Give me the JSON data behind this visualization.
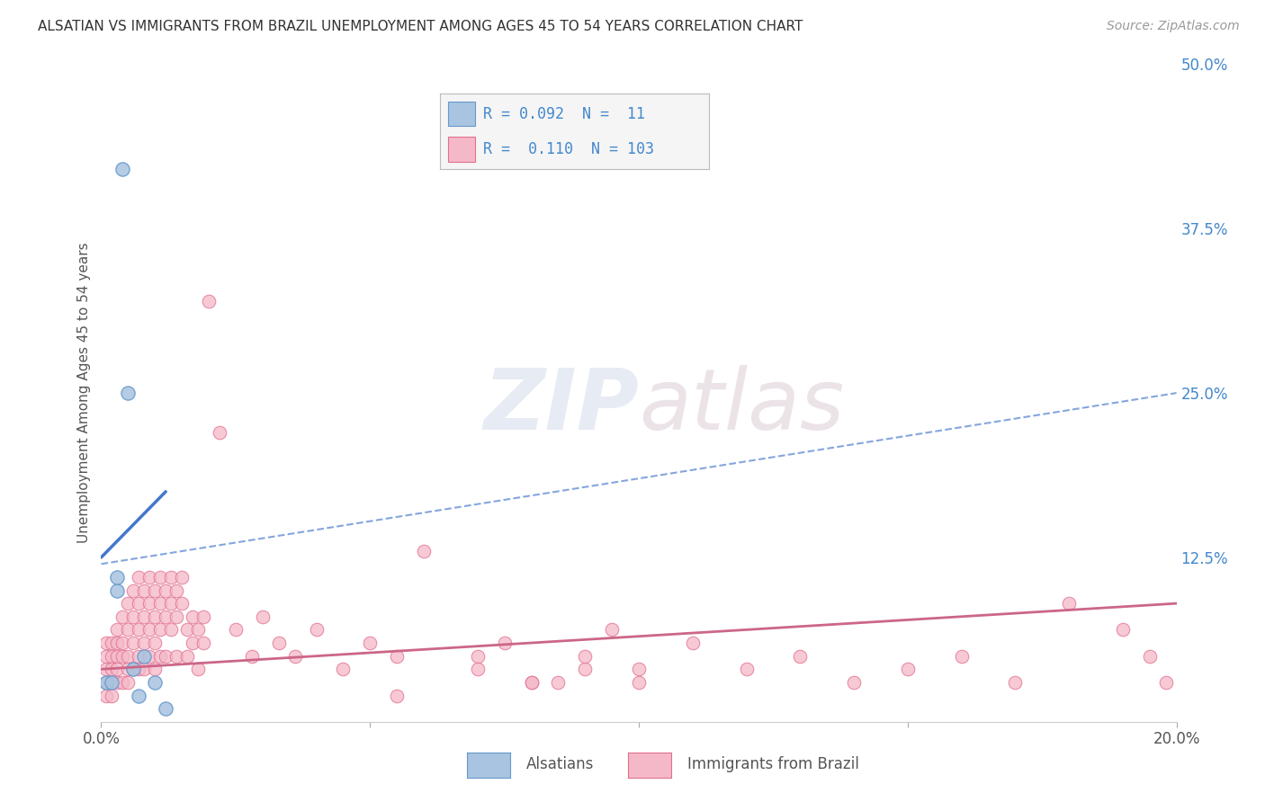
{
  "title": "ALSATIAN VS IMMIGRANTS FROM BRAZIL UNEMPLOYMENT AMONG AGES 45 TO 54 YEARS CORRELATION CHART",
  "source": "Source: ZipAtlas.com",
  "ylabel": "Unemployment Among Ages 45 to 54 years",
  "xlim": [
    0.0,
    0.2
  ],
  "ylim": [
    0.0,
    0.5
  ],
  "xtick_positions": [
    0.0,
    0.05,
    0.1,
    0.15,
    0.2
  ],
  "xtick_labels": [
    "0.0%",
    "",
    "",
    "",
    "20.0%"
  ],
  "ytick_positions": [
    0.0,
    0.125,
    0.25,
    0.375,
    0.5
  ],
  "ytick_labels": [
    "",
    "12.5%",
    "25.0%",
    "37.5%",
    "50.0%"
  ],
  "background_color": "#ffffff",
  "grid_color": "#cccccc",
  "series1_color": "#a8c4e0",
  "series1_edge": "#6699cc",
  "series2_color": "#f5b8c8",
  "series2_edge": "#e07090",
  "line1_color": "#4477cc",
  "line2_color": "#cc6688",
  "R1": 0.092,
  "N1": 11,
  "R2": 0.11,
  "N2": 103,
  "alsatian_x": [
    0.001,
    0.002,
    0.003,
    0.003,
    0.004,
    0.005,
    0.006,
    0.007,
    0.008,
    0.01,
    0.012
  ],
  "alsatian_y": [
    0.03,
    0.03,
    0.1,
    0.11,
    0.42,
    0.25,
    0.04,
    0.02,
    0.05,
    0.03,
    0.01
  ],
  "brazil_x": [
    0.001,
    0.001,
    0.001,
    0.001,
    0.001,
    0.002,
    0.002,
    0.002,
    0.002,
    0.002,
    0.003,
    0.003,
    0.003,
    0.003,
    0.003,
    0.004,
    0.004,
    0.004,
    0.004,
    0.005,
    0.005,
    0.005,
    0.005,
    0.005,
    0.006,
    0.006,
    0.006,
    0.006,
    0.007,
    0.007,
    0.007,
    0.007,
    0.007,
    0.008,
    0.008,
    0.008,
    0.008,
    0.009,
    0.009,
    0.009,
    0.009,
    0.01,
    0.01,
    0.01,
    0.01,
    0.011,
    0.011,
    0.011,
    0.011,
    0.012,
    0.012,
    0.012,
    0.013,
    0.013,
    0.013,
    0.014,
    0.014,
    0.014,
    0.015,
    0.015,
    0.016,
    0.016,
    0.017,
    0.017,
    0.018,
    0.018,
    0.019,
    0.019,
    0.02,
    0.022,
    0.025,
    0.028,
    0.03,
    0.033,
    0.036,
    0.04,
    0.045,
    0.05,
    0.055,
    0.06,
    0.07,
    0.08,
    0.09,
    0.1,
    0.11,
    0.12,
    0.13,
    0.14,
    0.15,
    0.16,
    0.17,
    0.18,
    0.19,
    0.195,
    0.198,
    0.055,
    0.07,
    0.08,
    0.09,
    0.1,
    0.075,
    0.085,
    0.095
  ],
  "brazil_y": [
    0.04,
    0.03,
    0.05,
    0.02,
    0.06,
    0.03,
    0.05,
    0.04,
    0.06,
    0.02,
    0.05,
    0.03,
    0.07,
    0.04,
    0.06,
    0.08,
    0.05,
    0.03,
    0.06,
    0.07,
    0.09,
    0.05,
    0.03,
    0.04,
    0.1,
    0.06,
    0.04,
    0.08,
    0.05,
    0.09,
    0.07,
    0.11,
    0.04,
    0.06,
    0.08,
    0.1,
    0.04,
    0.07,
    0.09,
    0.05,
    0.11,
    0.08,
    0.1,
    0.06,
    0.04,
    0.09,
    0.07,
    0.11,
    0.05,
    0.1,
    0.08,
    0.05,
    0.09,
    0.11,
    0.07,
    0.1,
    0.08,
    0.05,
    0.09,
    0.11,
    0.07,
    0.05,
    0.08,
    0.06,
    0.07,
    0.04,
    0.06,
    0.08,
    0.32,
    0.22,
    0.07,
    0.05,
    0.08,
    0.06,
    0.05,
    0.07,
    0.04,
    0.06,
    0.05,
    0.13,
    0.05,
    0.03,
    0.04,
    0.03,
    0.06,
    0.04,
    0.05,
    0.03,
    0.04,
    0.05,
    0.03,
    0.09,
    0.07,
    0.05,
    0.03,
    0.02,
    0.04,
    0.03,
    0.05,
    0.04,
    0.06,
    0.03,
    0.07
  ],
  "line1_x": [
    0.0,
    0.012
  ],
  "line1_y": [
    0.125,
    0.175
  ],
  "line2_x": [
    0.0,
    0.2
  ],
  "line2_y": [
    0.12,
    0.25
  ],
  "line3_x": [
    0.0,
    0.2
  ],
  "line3_y": [
    0.04,
    0.09
  ]
}
